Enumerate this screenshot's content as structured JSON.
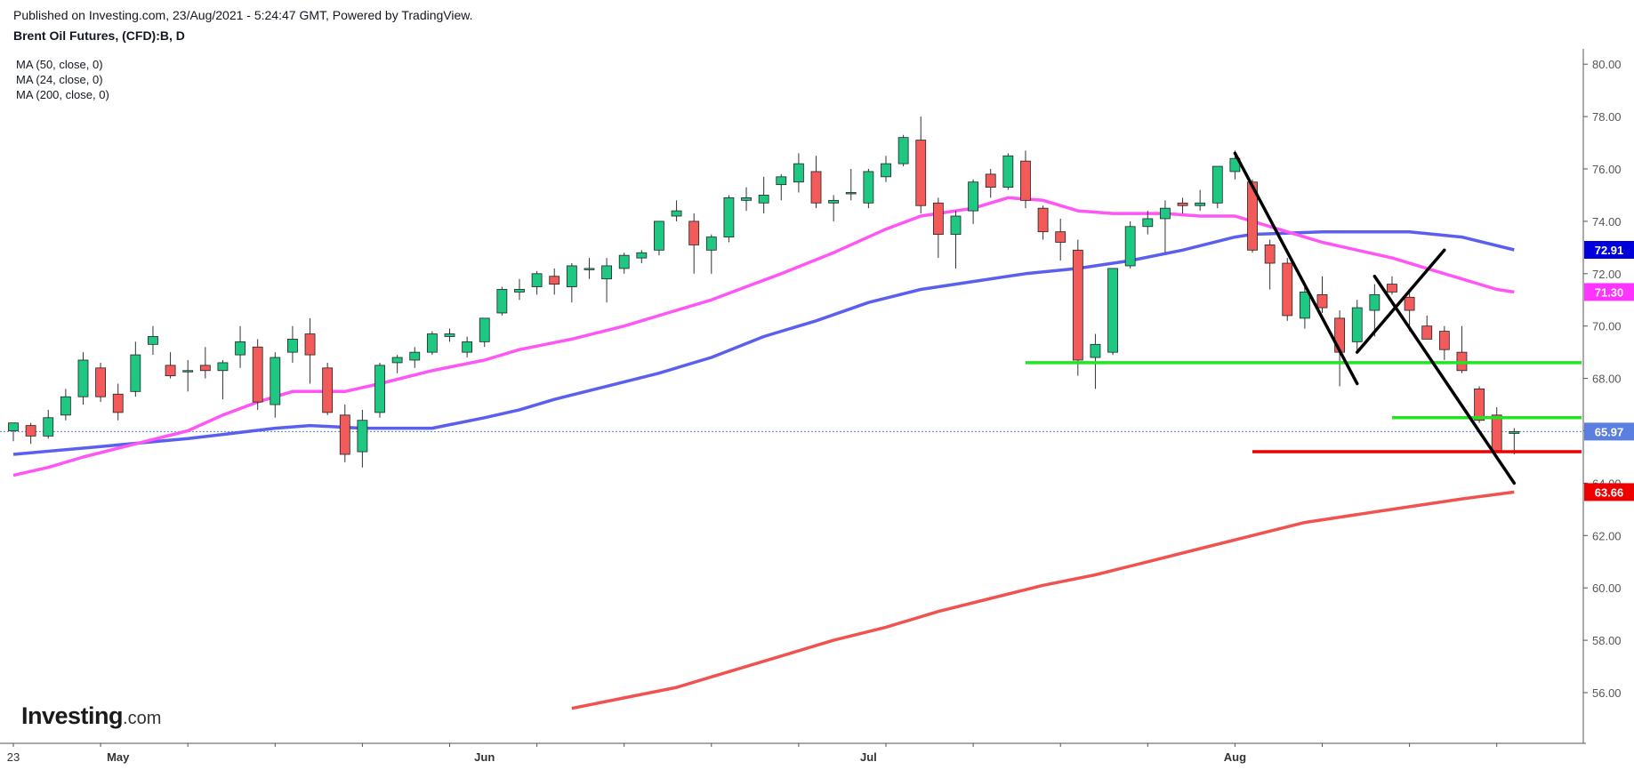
{
  "header": {
    "publish_line": "Published on Investing.com, 23/Aug/2021 - 5:24:47 GMT, Powered by TradingView.",
    "symbol_title": "Brent Oil Futures, (CFD):B, D"
  },
  "legend": [
    {
      "label": "MA (50, close, 0)",
      "color": "#5b5ff0"
    },
    {
      "label": "MA (24, close, 0)",
      "color": "#ff55f5"
    },
    {
      "label": "MA (200, close, 0)",
      "color": "#f0524f"
    }
  ],
  "logo": {
    "name": "Investing",
    "suffix": ".com"
  },
  "chart_data": {
    "type": "candlestick",
    "interval": "D",
    "ylim": [
      54.0,
      80.7
    ],
    "y_ticks": [
      "56.00",
      "58.00",
      "60.00",
      "62.00",
      "64.00",
      "66.00",
      "68.00",
      "70.00",
      "72.00",
      "74.00",
      "76.00",
      "78.00",
      "80.00"
    ],
    "x_labels": [
      {
        "label": "23",
        "index": 0
      },
      {
        "label": "May",
        "index": 6
      },
      {
        "label": "Jun",
        "index": 27
      },
      {
        "label": "Jul",
        "index": 49
      },
      {
        "label": "Aug",
        "index": 70
      }
    ],
    "price_labels": [
      {
        "label": "72.91",
        "value": 72.91,
        "color": "#0000dd"
      },
      {
        "label": "71.30",
        "value": 71.3,
        "color": "#ff33ff"
      },
      {
        "label": "65.97",
        "value": 65.97,
        "color": "#5b7fe0"
      },
      {
        "label": "63.66",
        "value": 63.66,
        "color": "#ee0000"
      }
    ],
    "last_price": 65.97,
    "colors": {
      "up": "#1ec882",
      "down": "#f35a5a",
      "wick": "#333333"
    },
    "candles": [
      [
        0,
        66.0,
        66.3,
        65.6,
        66.3
      ],
      [
        1,
        66.2,
        66.3,
        65.5,
        65.8
      ],
      [
        2,
        65.8,
        66.8,
        65.7,
        66.5
      ],
      [
        3,
        66.6,
        67.6,
        66.4,
        67.3
      ],
      [
        4,
        67.3,
        69.0,
        67.0,
        68.7
      ],
      [
        5,
        68.4,
        68.6,
        67.1,
        67.3
      ],
      [
        6,
        67.4,
        67.8,
        66.4,
        66.7
      ],
      [
        7,
        67.5,
        69.4,
        67.3,
        68.9
      ],
      [
        8,
        69.3,
        70.0,
        68.9,
        69.6
      ],
      [
        9,
        68.5,
        69.0,
        68.0,
        68.1
      ],
      [
        10,
        68.3,
        68.7,
        67.5,
        68.3
      ],
      [
        11,
        68.5,
        69.2,
        68.0,
        68.3
      ],
      [
        12,
        68.3,
        68.7,
        67.2,
        68.6
      ],
      [
        13,
        68.9,
        70.0,
        68.4,
        69.4
      ],
      [
        14,
        69.2,
        69.5,
        66.8,
        67.1
      ],
      [
        15,
        67.0,
        69.0,
        66.5,
        68.8
      ],
      [
        16,
        69.0,
        70.0,
        68.6,
        69.5
      ],
      [
        17,
        69.7,
        70.3,
        67.8,
        68.9
      ],
      [
        18,
        68.4,
        68.6,
        66.6,
        66.7
      ],
      [
        19,
        66.6,
        67.0,
        64.8,
        65.1
      ],
      [
        20,
        65.2,
        66.8,
        64.6,
        66.4
      ],
      [
        21,
        66.7,
        68.6,
        66.5,
        68.5
      ],
      [
        22,
        68.6,
        68.9,
        68.2,
        68.8
      ],
      [
        23,
        68.7,
        69.2,
        68.4,
        69.0
      ],
      [
        24,
        69.0,
        69.8,
        68.9,
        69.7
      ],
      [
        25,
        69.6,
        69.9,
        69.4,
        69.7
      ],
      [
        26,
        69.0,
        69.6,
        68.8,
        69.4
      ],
      [
        27,
        69.4,
        70.3,
        69.2,
        70.3
      ],
      [
        28,
        70.5,
        71.5,
        70.4,
        71.4
      ],
      [
        29,
        71.3,
        71.8,
        71.0,
        71.4
      ],
      [
        30,
        71.5,
        72.1,
        71.2,
        72.0
      ],
      [
        31,
        71.9,
        72.2,
        71.2,
        71.6
      ],
      [
        32,
        71.5,
        72.4,
        70.9,
        72.3
      ],
      [
        33,
        72.2,
        72.6,
        71.8,
        72.2
      ],
      [
        34,
        71.8,
        72.6,
        70.9,
        72.3
      ],
      [
        35,
        72.2,
        72.8,
        72.0,
        72.7
      ],
      [
        36,
        72.6,
        72.9,
        72.4,
        72.8
      ],
      [
        37,
        72.9,
        74.0,
        72.7,
        74.0
      ],
      [
        38,
        74.2,
        74.8,
        74.0,
        74.4
      ],
      [
        39,
        74.0,
        74.3,
        72.0,
        73.1
      ],
      [
        40,
        72.9,
        73.5,
        72.0,
        73.4
      ],
      [
        41,
        73.4,
        75.0,
        73.2,
        74.9
      ],
      [
        42,
        74.8,
        75.3,
        74.4,
        74.9
      ],
      [
        43,
        74.7,
        75.7,
        74.3,
        75.0
      ],
      [
        44,
        75.4,
        75.8,
        74.8,
        75.7
      ],
      [
        45,
        75.5,
        76.6,
        75.1,
        76.2
      ],
      [
        46,
        75.9,
        76.5,
        74.5,
        74.7
      ],
      [
        47,
        74.7,
        75.0,
        74.0,
        74.8
      ],
      [
        48,
        75.1,
        76.0,
        74.8,
        75.1
      ],
      [
        49,
        74.7,
        76.0,
        74.5,
        75.9
      ],
      [
        50,
        75.7,
        76.5,
        75.5,
        76.2
      ],
      [
        51,
        76.2,
        77.3,
        76.1,
        77.2
      ],
      [
        52,
        77.1,
        78.0,
        74.3,
        74.6
      ],
      [
        53,
        74.7,
        74.9,
        72.6,
        73.5
      ],
      [
        54,
        73.5,
        74.4,
        72.2,
        74.2
      ],
      [
        55,
        74.4,
        75.6,
        73.9,
        75.5
      ],
      [
        56,
        75.8,
        76.0,
        74.9,
        75.3
      ],
      [
        57,
        75.3,
        76.6,
        75.2,
        76.5
      ],
      [
        58,
        76.3,
        76.7,
        74.5,
        74.8
      ],
      [
        59,
        74.5,
        74.6,
        73.3,
        73.6
      ],
      [
        60,
        73.6,
        74.1,
        72.5,
        73.2
      ],
      [
        61,
        72.9,
        73.3,
        68.1,
        68.7
      ],
      [
        62,
        68.8,
        69.7,
        67.6,
        69.3
      ],
      [
        63,
        69.0,
        72.2,
        68.9,
        72.2
      ],
      [
        64,
        72.3,
        74.0,
        72.2,
        73.8
      ],
      [
        65,
        73.8,
        74.4,
        73.5,
        74.1
      ],
      [
        66,
        74.1,
        74.8,
        72.8,
        74.5
      ],
      [
        67,
        74.7,
        74.9,
        74.3,
        74.6
      ],
      [
        68,
        74.6,
        75.2,
        74.4,
        74.7
      ],
      [
        69,
        74.7,
        76.1,
        74.5,
        76.1
      ],
      [
        70,
        75.9,
        76.7,
        75.6,
        76.4
      ],
      [
        71,
        75.5,
        75.6,
        72.8,
        72.9
      ],
      [
        72,
        73.1,
        73.3,
        71.4,
        72.4
      ],
      [
        73,
        72.4,
        72.6,
        70.2,
        70.4
      ],
      [
        74,
        70.3,
        71.5,
        69.9,
        71.3
      ],
      [
        75,
        71.2,
        71.9,
        70.5,
        70.7
      ],
      [
        76,
        70.3,
        70.6,
        67.7,
        69.0
      ],
      [
        77,
        69.4,
        71.0,
        69.0,
        70.7
      ],
      [
        78,
        70.6,
        71.6,
        69.6,
        71.2
      ],
      [
        79,
        71.6,
        71.9,
        71.2,
        71.3
      ],
      [
        80,
        71.1,
        71.3,
        69.8,
        70.6
      ],
      [
        81,
        70.0,
        70.4,
        69.5,
        69.5
      ],
      [
        82,
        69.8,
        70.0,
        68.7,
        69.1
      ],
      [
        83,
        69.0,
        70.0,
        68.2,
        68.3
      ],
      [
        84,
        67.6,
        67.7,
        66.3,
        66.4
      ],
      [
        85,
        66.6,
        66.9,
        65.2,
        65.2
      ],
      [
        86,
        65.9,
        66.1,
        65.1,
        65.97
      ]
    ],
    "series": [
      {
        "name": "MA (50, close, 0)",
        "color": "#5b5ff0",
        "values": [
          [
            0,
            65.1
          ],
          [
            5,
            65.4
          ],
          [
            10,
            65.7
          ],
          [
            15,
            66.1
          ],
          [
            17,
            66.2
          ],
          [
            20,
            66.1
          ],
          [
            24,
            66.1
          ],
          [
            27,
            66.5
          ],
          [
            29,
            66.8
          ],
          [
            31,
            67.2
          ],
          [
            34,
            67.7
          ],
          [
            37,
            68.2
          ],
          [
            40,
            68.8
          ],
          [
            43,
            69.6
          ],
          [
            46,
            70.2
          ],
          [
            49,
            70.9
          ],
          [
            52,
            71.4
          ],
          [
            55,
            71.7
          ],
          [
            58,
            72.0
          ],
          [
            61,
            72.2
          ],
          [
            64,
            72.5
          ],
          [
            67,
            72.9
          ],
          [
            70,
            73.4
          ],
          [
            71,
            73.5
          ],
          [
            75,
            73.6
          ],
          [
            80,
            73.6
          ],
          [
            83,
            73.4
          ],
          [
            86,
            72.91
          ]
        ]
      },
      {
        "name": "MA (24, close, 0)",
        "color": "#ff55f5",
        "values": [
          [
            0,
            64.3
          ],
          [
            2,
            64.6
          ],
          [
            4,
            65.0
          ],
          [
            7,
            65.5
          ],
          [
            10,
            66.0
          ],
          [
            12,
            66.6
          ],
          [
            14,
            67.1
          ],
          [
            16,
            67.5
          ],
          [
            19,
            67.5
          ],
          [
            21,
            67.8
          ],
          [
            24,
            68.3
          ],
          [
            27,
            68.7
          ],
          [
            29,
            69.1
          ],
          [
            32,
            69.5
          ],
          [
            35,
            70.0
          ],
          [
            38,
            70.6
          ],
          [
            40,
            71.0
          ],
          [
            42,
            71.5
          ],
          [
            44,
            72.0
          ],
          [
            47,
            72.8
          ],
          [
            50,
            73.7
          ],
          [
            52,
            74.2
          ],
          [
            55,
            74.5
          ],
          [
            57,
            74.9
          ],
          [
            59,
            74.8
          ],
          [
            61,
            74.4
          ],
          [
            63,
            74.3
          ],
          [
            66,
            74.3
          ],
          [
            68,
            74.2
          ],
          [
            70,
            74.2
          ],
          [
            71,
            74.0
          ],
          [
            73,
            73.6
          ],
          [
            75,
            73.2
          ],
          [
            77,
            72.9
          ],
          [
            79,
            72.6
          ],
          [
            81,
            72.2
          ],
          [
            83,
            71.8
          ],
          [
            85,
            71.4
          ],
          [
            86,
            71.3
          ]
        ]
      },
      {
        "name": "MA (200, close, 0)",
        "color": "#f0524f",
        "values": [
          [
            32,
            55.4
          ],
          [
            35,
            55.8
          ],
          [
            38,
            56.2
          ],
          [
            41,
            56.8
          ],
          [
            44,
            57.4
          ],
          [
            47,
            58.0
          ],
          [
            50,
            58.5
          ],
          [
            53,
            59.1
          ],
          [
            56,
            59.6
          ],
          [
            59,
            60.1
          ],
          [
            62,
            60.5
          ],
          [
            65,
            61.0
          ],
          [
            68,
            61.5
          ],
          [
            71,
            62.0
          ],
          [
            74,
            62.5
          ],
          [
            77,
            62.8
          ],
          [
            80,
            63.1
          ],
          [
            83,
            63.4
          ],
          [
            86,
            63.66
          ]
        ]
      }
    ],
    "annotations": {
      "horizontal_lines": [
        {
          "from": 58,
          "to": 90,
          "value": 68.6,
          "color": "#22e522"
        },
        {
          "from": 79,
          "to": 91,
          "value": 66.5,
          "color": "#22e522"
        },
        {
          "from": 71,
          "to": 91,
          "value": 65.2,
          "color": "#ee0000"
        }
      ],
      "trend_lines": [
        {
          "x1": 70,
          "y1": 76.6,
          "x2": 77,
          "y2": 67.8,
          "color": "#000000"
        },
        {
          "x1": 77,
          "y1": 69.0,
          "x2": 82,
          "y2": 72.9,
          "color": "#000000"
        },
        {
          "x1": 78,
          "y1": 71.9,
          "x2": 86,
          "y2": 64.0,
          "color": "#000000"
        }
      ]
    }
  }
}
